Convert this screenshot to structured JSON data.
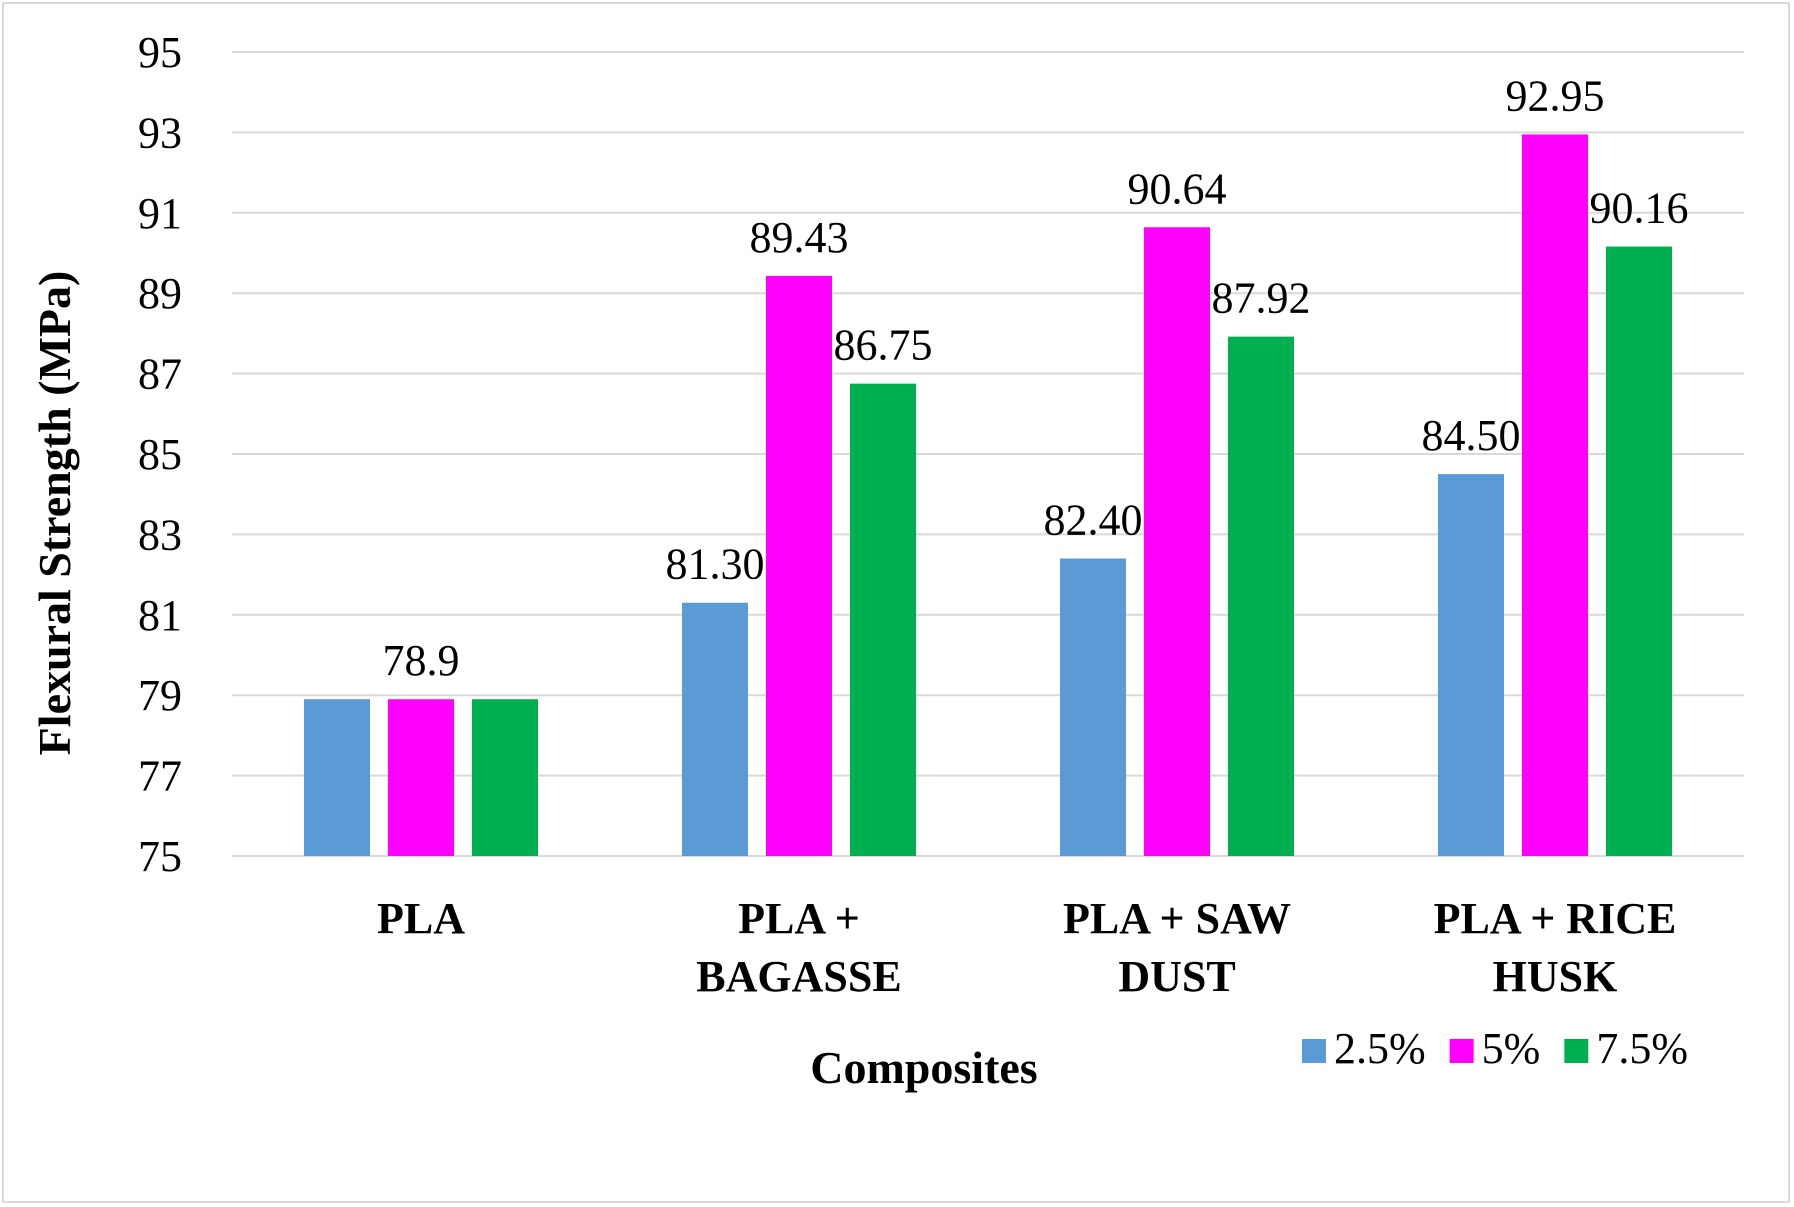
{
  "chart_data": {
    "type": "bar",
    "xlabel": "Composites",
    "ylabel": "Flexural Strength (MPa)",
    "ylim": [
      75,
      95
    ],
    "yticks": [
      75,
      77,
      79,
      81,
      83,
      85,
      87,
      89,
      91,
      93,
      95
    ],
    "grid": true,
    "legend_position": "bottom-right",
    "categories": [
      [
        "PLA"
      ],
      [
        "PLA +",
        "BAGASSE"
      ],
      [
        "PLA + SAW",
        "DUST"
      ],
      [
        "PLA + RICE",
        "HUSK"
      ]
    ],
    "series": [
      {
        "name": "2.5%",
        "color": "#5b9bd5",
        "values": [
          78.9,
          81.3,
          82.4,
          84.5
        ]
      },
      {
        "name": "5%",
        "color": "#ff00ff",
        "values": [
          78.9,
          89.43,
          90.64,
          92.95
        ]
      },
      {
        "name": "7.5%",
        "color": "#00b050",
        "values": [
          78.9,
          86.75,
          87.92,
          90.16
        ]
      }
    ],
    "data_labels": [
      [
        "",
        "81.30",
        "82.40",
        "84.50"
      ],
      [
        "78.9",
        "89.43",
        "90.64",
        "92.95"
      ],
      [
        "",
        "86.75",
        "87.92",
        "90.16"
      ]
    ]
  }
}
